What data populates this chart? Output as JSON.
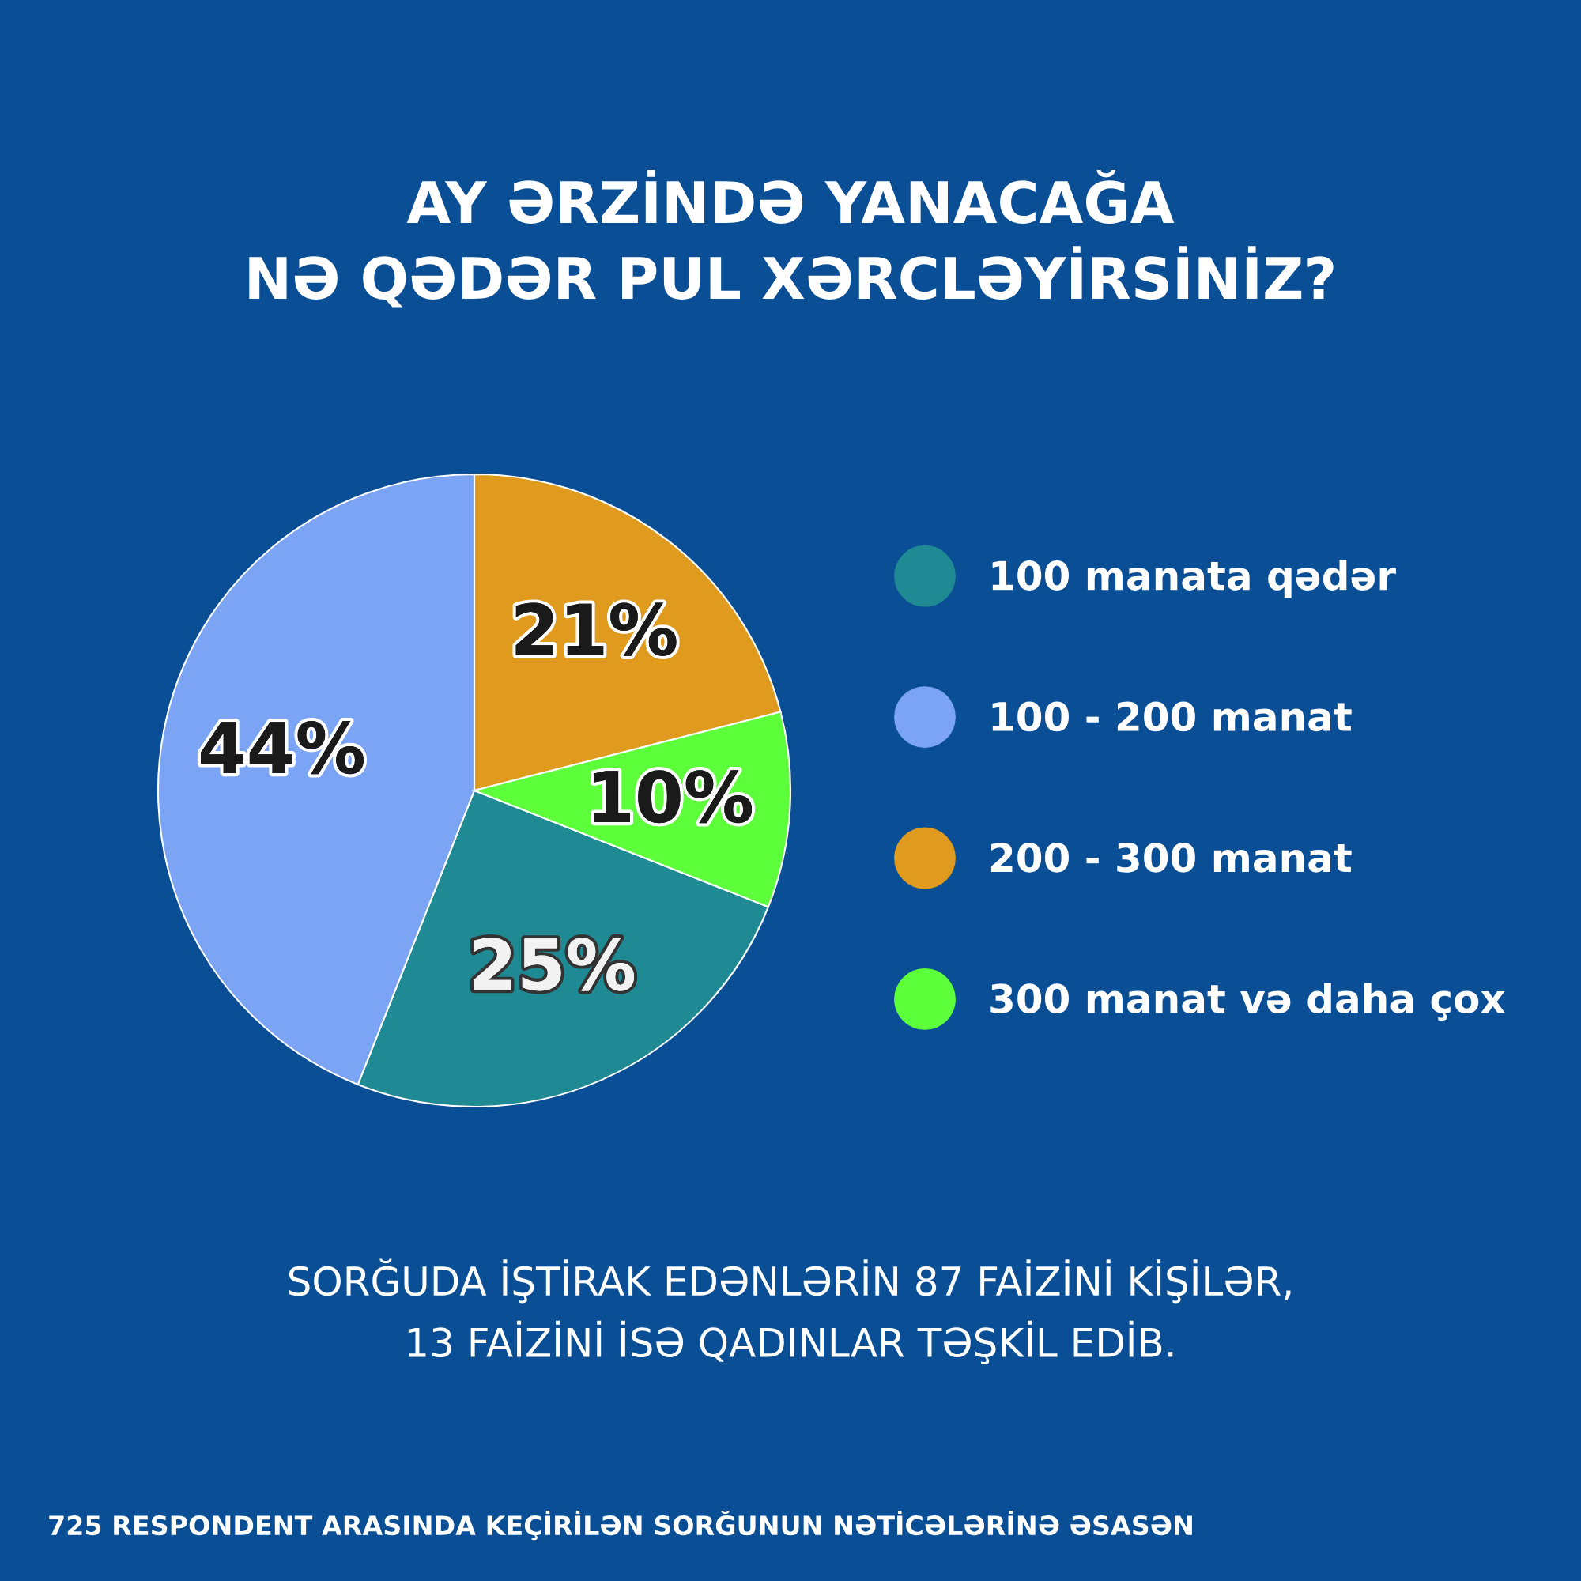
{
  "chart_data": {
    "type": "pie",
    "title": "AY ƏRZİNDƏ YANACAĞA\nNƏ QƏDƏR PUL XƏRCLƏYİRSİNİZ?",
    "categories": [
      "100 manata qədər",
      "100 - 200 manat",
      "200 - 300 manat",
      "300 manat və daha çox"
    ],
    "values": [
      25,
      44,
      21,
      10
    ],
    "value_labels": [
      "25%",
      "44%",
      "21%",
      "10%"
    ],
    "colors": [
      "#1f8a94",
      "#7ba4f5",
      "#e09a1e",
      "#5cff3a"
    ],
    "legend": "right",
    "annotations": [
      "SORĞUDA İŞTİRAK EDƏNLƏRİN 87 FAİZİNİ KİŞİLƏR,\n13 FAİZİNİ İSƏ QADINLAR TƏŞKİL EDİB.",
      "725 RESPONDENT ARASINDA KEÇİRİLƏN SORĞUNUN NƏTİCƏLƏRİNƏ ƏSASƏN"
    ]
  }
}
